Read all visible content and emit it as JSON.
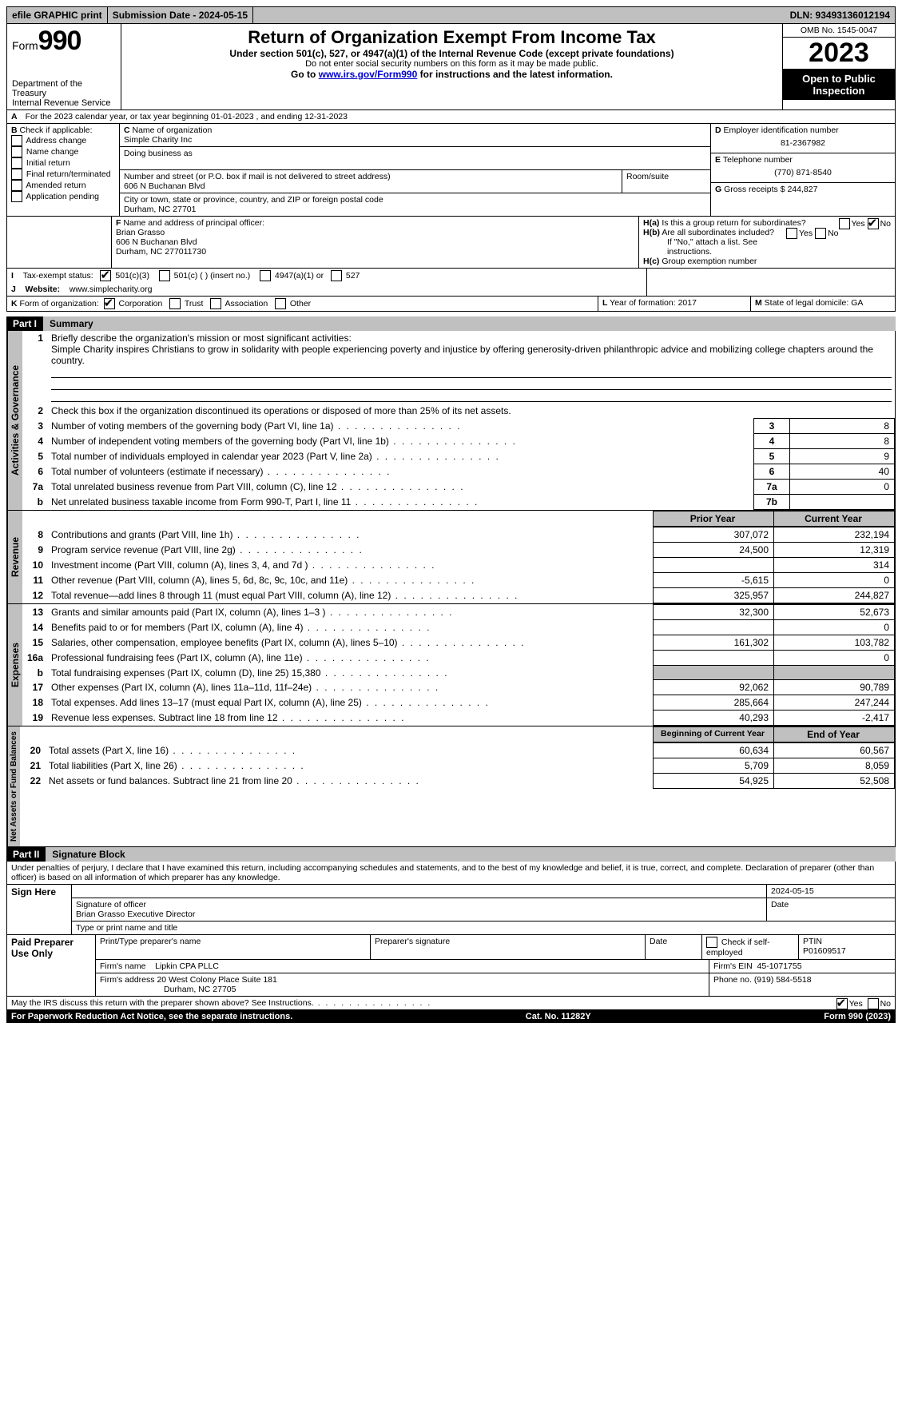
{
  "topbar": {
    "efile": "efile GRAPHIC print",
    "submission_label": "Submission Date - 2024-05-15",
    "dln_label": "DLN: 93493136012194"
  },
  "header": {
    "form_word": "Form",
    "form_num": "990",
    "dept": "Department of the Treasury",
    "irs": "Internal Revenue Service",
    "title": "Return of Organization Exempt From Income Tax",
    "subtitle": "Under section 501(c), 527, or 4947(a)(1) of the Internal Revenue Code (except private foundations)",
    "warn": "Do not enter social security numbers on this form as it may be made public.",
    "goto_prefix": "Go to ",
    "goto_link": "www.irs.gov/Form990",
    "goto_suffix": " for instructions and the latest information.",
    "omb": "OMB No. 1545-0047",
    "year": "2023",
    "inspection": "Open to Public Inspection"
  },
  "periodA": "For the 2023 calendar year, or tax year beginning 01-01-2023   , and ending 12-31-2023",
  "boxB": {
    "label": "Check if applicable:",
    "opts": [
      "Address change",
      "Name change",
      "Initial return",
      "Final return/terminated",
      "Amended return",
      "Application pending"
    ]
  },
  "boxC": {
    "name_label": "Name of organization",
    "name": "Simple Charity Inc",
    "dba_label": "Doing business as",
    "street_label": "Number and street (or P.O. box if mail is not delivered to street address)",
    "room_label": "Room/suite",
    "street": "606 N Buchanan Blvd",
    "city_label": "City or town, state or province, country, and ZIP or foreign postal code",
    "city": "Durham, NC  27701"
  },
  "boxD": {
    "label": "Employer identification number",
    "value": "81-2367982"
  },
  "boxE": {
    "label": "Telephone number",
    "value": "(770) 871-8540"
  },
  "boxG": {
    "label": "Gross receipts $",
    "value": "244,827"
  },
  "boxF": {
    "label": "Name and address of principal officer:",
    "name": "Brian Grasso",
    "addr1": "606 N Buchanan Blvd",
    "addr2": "Durham, NC  277011730"
  },
  "boxH": {
    "ha": "Is this a group return for subordinates?",
    "hb": "Are all subordinates included?",
    "hb_note": "If \"No,\" attach a list. See instructions.",
    "hc": "Group exemption number",
    "yes": "Yes",
    "no": "No"
  },
  "boxI": {
    "label": "Tax-exempt status:",
    "o1": "501(c)(3)",
    "o2": "501(c) (  ) (insert no.)",
    "o3": "4947(a)(1) or",
    "o4": "527"
  },
  "boxJ": {
    "label": "Website:",
    "value": "www.simplecharity.org"
  },
  "boxK": {
    "label": "Form of organization:",
    "o1": "Corporation",
    "o2": "Trust",
    "o3": "Association",
    "o4": "Other"
  },
  "boxL": {
    "label": "Year of formation:",
    "value": "2017"
  },
  "boxM": {
    "label": "State of legal domicile:",
    "value": "GA"
  },
  "part1": {
    "part": "Part I",
    "title": "Summary",
    "l1_label": "Briefly describe the organization's mission or most significant activities:",
    "l1_text": "Simple Charity inspires Christians to grow in solidarity with people experiencing poverty and injustice by offering generosity-driven philanthropic advice and mobilizing college chapters around the country.",
    "l2": "Check this box    if the organization discontinued its operations or disposed of more than 25% of its net assets.",
    "govern_label": "Activities & Governance",
    "revenue_label": "Revenue",
    "expenses_label": "Expenses",
    "netassets_label": "Net Assets or Fund Balances",
    "lines_top": [
      {
        "n": "3",
        "t": "Number of voting members of the governing body (Part VI, line 1a)",
        "box": "3",
        "v": "8"
      },
      {
        "n": "4",
        "t": "Number of independent voting members of the governing body (Part VI, line 1b)",
        "box": "4",
        "v": "8"
      },
      {
        "n": "5",
        "t": "Total number of individuals employed in calendar year 2023 (Part V, line 2a)",
        "box": "5",
        "v": "9"
      },
      {
        "n": "6",
        "t": "Total number of volunteers (estimate if necessary)",
        "box": "6",
        "v": "40"
      },
      {
        "n": "7a",
        "t": "Total unrelated business revenue from Part VIII, column (C), line 12",
        "box": "7a",
        "v": "0"
      },
      {
        "n": "b",
        "t": "Net unrelated business taxable income from Form 990-T, Part I, line 11",
        "box": "7b",
        "v": ""
      }
    ],
    "col_prior": "Prior Year",
    "col_current": "Current Year",
    "revenue_lines": [
      {
        "n": "8",
        "t": "Contributions and grants (Part VIII, line 1h)",
        "p": "307,072",
        "c": "232,194"
      },
      {
        "n": "9",
        "t": "Program service revenue (Part VIII, line 2g)",
        "p": "24,500",
        "c": "12,319"
      },
      {
        "n": "10",
        "t": "Investment income (Part VIII, column (A), lines 3, 4, and 7d )",
        "p": "",
        "c": "314"
      },
      {
        "n": "11",
        "t": "Other revenue (Part VIII, column (A), lines 5, 6d, 8c, 9c, 10c, and 11e)",
        "p": "-5,615",
        "c": "0"
      },
      {
        "n": "12",
        "t": "Total revenue—add lines 8 through 11 (must equal Part VIII, column (A), line 12)",
        "p": "325,957",
        "c": "244,827"
      }
    ],
    "expense_lines": [
      {
        "n": "13",
        "t": "Grants and similar amounts paid (Part IX, column (A), lines 1–3 )",
        "p": "32,300",
        "c": "52,673"
      },
      {
        "n": "14",
        "t": "Benefits paid to or for members (Part IX, column (A), line 4)",
        "p": "",
        "c": "0"
      },
      {
        "n": "15",
        "t": "Salaries, other compensation, employee benefits (Part IX, column (A), lines 5–10)",
        "p": "161,302",
        "c": "103,782"
      },
      {
        "n": "16a",
        "t": "Professional fundraising fees (Part IX, column (A), line 11e)",
        "p": "",
        "c": "0"
      },
      {
        "n": "b",
        "t": "Total fundraising expenses (Part IX, column (D), line 25) 15,380",
        "p": "shade",
        "c": "shade"
      },
      {
        "n": "17",
        "t": "Other expenses (Part IX, column (A), lines 11a–11d, 11f–24e)",
        "p": "92,062",
        "c": "90,789"
      },
      {
        "n": "18",
        "t": "Total expenses. Add lines 13–17 (must equal Part IX, column (A), line 25)",
        "p": "285,664",
        "c": "247,244"
      },
      {
        "n": "19",
        "t": "Revenue less expenses. Subtract line 18 from line 12",
        "p": "40,293",
        "c": "-2,417"
      }
    ],
    "col_begin": "Beginning of Current Year",
    "col_end": "End of Year",
    "net_lines": [
      {
        "n": "20",
        "t": "Total assets (Part X, line 16)",
        "p": "60,634",
        "c": "60,567"
      },
      {
        "n": "21",
        "t": "Total liabilities (Part X, line 26)",
        "p": "5,709",
        "c": "8,059"
      },
      {
        "n": "22",
        "t": "Net assets or fund balances. Subtract line 21 from line 20",
        "p": "54,925",
        "c": "52,508"
      }
    ]
  },
  "part2": {
    "part": "Part II",
    "title": "Signature Block",
    "decl": "Under penalties of perjury, I declare that I have examined this return, including accompanying schedules and statements, and to the best of my knowledge and belief, it is true, correct, and complete. Declaration of preparer (other than officer) is based on all information of which preparer has any knowledge.",
    "sign_here": "Sign Here",
    "sig_officer": "Signature of officer",
    "sig_date": "2024-05-15",
    "officer_name": "Brian Grasso  Executive Director",
    "type_name": "Type or print name and title",
    "paid": "Paid Preparer Use Only",
    "prep_name_label": "Print/Type preparer's name",
    "prep_sig_label": "Preparer's signature",
    "date_label": "Date",
    "check_label": "Check      if self-employed",
    "ptin_label": "PTIN",
    "ptin": "P01609517",
    "firm_name_label": "Firm's name",
    "firm_name": "Lipkin CPA PLLC",
    "firm_ein_label": "Firm's EIN",
    "firm_ein": "45-1071755",
    "firm_addr_label": "Firm's address",
    "firm_addr": "20 West Colony Place Suite 181",
    "firm_city": "Durham, NC  27705",
    "phone_label": "Phone no.",
    "phone": "(919) 584-5518",
    "discuss": "May the IRS discuss this return with the preparer shown above? See Instructions.",
    "yes": "Yes",
    "no": "No"
  },
  "footer": {
    "left": "For Paperwork Reduction Act Notice, see the separate instructions.",
    "mid": "Cat. No. 11282Y",
    "right": "Form 990 (2023)"
  }
}
